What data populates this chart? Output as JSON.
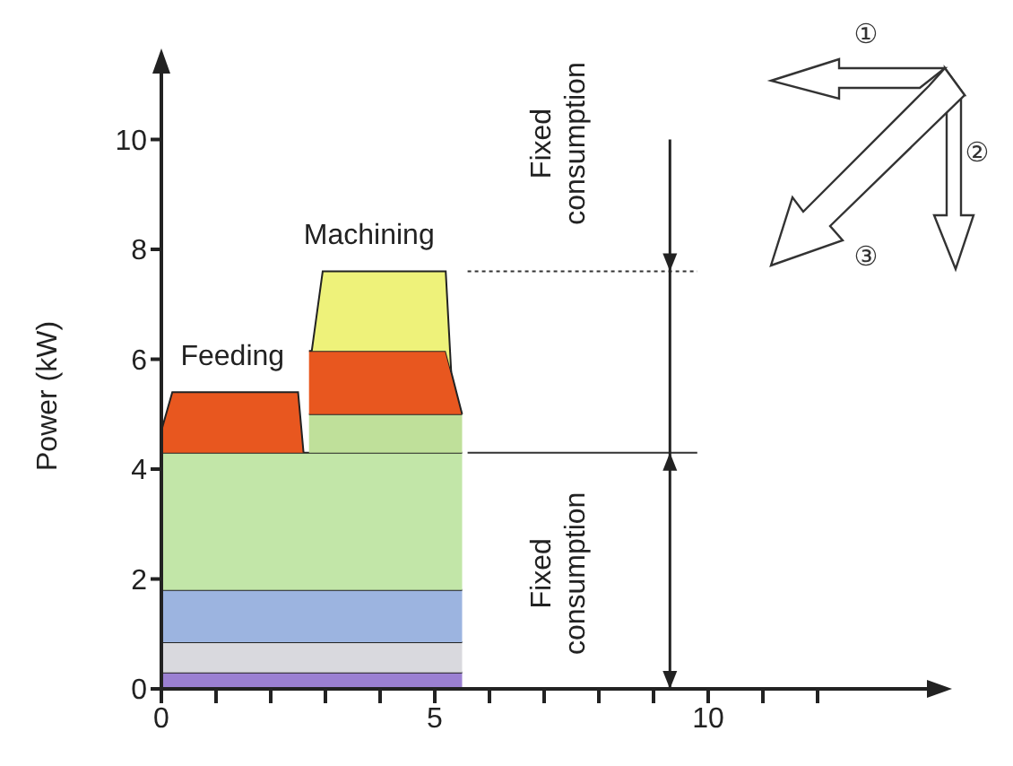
{
  "chart_data": {
    "type": "area",
    "stacked": true,
    "ylabel": "Power (kW)",
    "x": [
      0,
      0.2,
      2.5,
      2.6,
      2.7,
      2.75,
      2.95,
      5.2,
      5.3,
      5.5
    ],
    "series": [
      {
        "color": "#9b80d2",
        "values": [
          0.3,
          0.3,
          0.3,
          0.3,
          0.3,
          0.3,
          0.3,
          0.3,
          0.3,
          0.3
        ]
      },
      {
        "color": "#d9d9de",
        "values": [
          0.55,
          0.55,
          0.55,
          0.55,
          0.55,
          0.55,
          0.55,
          0.55,
          0.55,
          0.55
        ]
      },
      {
        "color": "#9cb4e0",
        "values": [
          0.95,
          0.95,
          0.95,
          0.95,
          0.95,
          0.95,
          0.95,
          0.95,
          0.95,
          0.95
        ]
      },
      {
        "color": "#c2e6a8",
        "values": [
          2.5,
          2.5,
          2.5,
          2.5,
          2.5,
          2.5,
          2.5,
          2.5,
          2.5,
          2.5
        ]
      },
      {
        "color": "#e8571f",
        "values": [
          0.4,
          1.1,
          1.1,
          0,
          null,
          null,
          null,
          null,
          null,
          null
        ]
      },
      {
        "color": "#bfe09a",
        "values": [
          null,
          null,
          null,
          null,
          0.7,
          0.7,
          0.7,
          0.7,
          0.7,
          0.7
        ]
      },
      {
        "color": "#e8571f",
        "values": [
          null,
          null,
          null,
          null,
          1.15,
          1.15,
          1.15,
          1.15,
          0.77,
          0
        ]
      },
      {
        "color": "#eef27a",
        "values": [
          null,
          null,
          null,
          null,
          null,
          0,
          1.45,
          1.45,
          0,
          null
        ]
      }
    ],
    "xlim": [
      0,
      14
    ],
    "ylim": [
      0,
      11.2
    ],
    "xticks": [
      0,
      {
        "value": 1,
        "label": null
      },
      {
        "value": 2,
        "label": null
      },
      {
        "value": 3,
        "label": null
      },
      {
        "value": 4,
        "label": null
      },
      5,
      {
        "value": 6,
        "label": null
      },
      {
        "value": 7,
        "label": null
      },
      {
        "value": 8,
        "label": null
      },
      {
        "value": 9,
        "label": null
      },
      10,
      {
        "value": 11,
        "label": null
      },
      {
        "value": 12,
        "label": null
      }
    ],
    "yticks": [
      0,
      2,
      4,
      6,
      8,
      10
    ],
    "ref_lines": [
      {
        "axis": "y",
        "value": 7.6,
        "line_style": "dotted",
        "color": "#333333"
      },
      {
        "axis": "y",
        "value": 4.3,
        "line_style": "solid",
        "color": "#333333"
      },
      {
        "axis": "x",
        "value": 9.3,
        "line_style": "solid",
        "color": "#222222"
      }
    ],
    "annotations": [
      "Feeding",
      "Machining",
      "Fixed consumption",
      "Fixed consumption",
      "①",
      "②",
      "③"
    ]
  }
}
